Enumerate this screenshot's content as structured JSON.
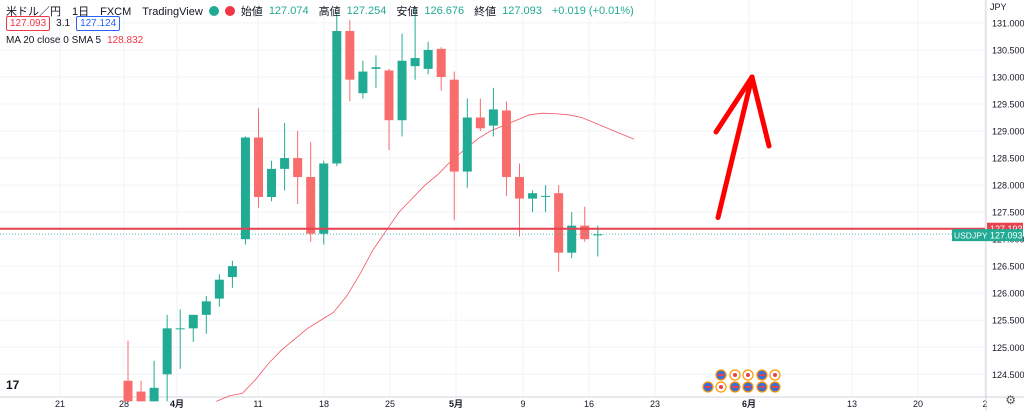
{
  "header": {
    "symbol": "米ドル／円　1日　FXCM　TradingView",
    "open_label": "始値",
    "open": "127.074",
    "high_label": "高値",
    "high": "127.254",
    "low_label": "安値",
    "low": "126.676",
    "close_label": "終値",
    "close": "127.093",
    "change": "+0.019 (+0.01%)",
    "bid": "127.093",
    "spread": "3.1",
    "ask": "127.124",
    "ma_label": "MA 20 close 0 SMA 5",
    "ma_value": "128.832"
  },
  "colors": {
    "up": "#22ab94",
    "down": "#f86c6b",
    "ma": "#f23645",
    "arrow": "#ff0000",
    "hline": "#e5414f"
  },
  "chart_data": {
    "type": "candlestick",
    "currency": "JPY",
    "y_ticks": [
      "131.000",
      "130.500",
      "130.000",
      "129.500",
      "129.000",
      "128.500",
      "128.000",
      "127.500",
      "127.000",
      "126.500",
      "126.000",
      "125.500",
      "125.000",
      "124.500"
    ],
    "ylim": [
      124.08,
      131.35
    ],
    "x_ticks": [
      "21",
      "28",
      "4月",
      "11",
      "18",
      "25",
      "5月",
      "9",
      "16",
      "23",
      "6月",
      "13",
      "20",
      "2"
    ],
    "candles": [
      {
        "o": 124.38,
        "h": 125.12,
        "l": 124.0,
        "c": 124.0
      },
      {
        "o": 124.18,
        "h": 124.38,
        "l": 124.0,
        "c": 124.0
      },
      {
        "o": 124.0,
        "h": 124.75,
        "l": 124.0,
        "c": 124.25
      },
      {
        "o": 124.5,
        "h": 125.6,
        "l": 124.0,
        "c": 125.35
      },
      {
        "o": 125.35,
        "h": 125.7,
        "l": 124.6,
        "c": 125.35
      },
      {
        "o": 125.35,
        "h": 125.55,
        "l": 125.1,
        "c": 125.6
      },
      {
        "o": 125.6,
        "h": 125.95,
        "l": 125.25,
        "c": 125.85
      },
      {
        "o": 125.9,
        "h": 126.35,
        "l": 125.75,
        "c": 126.25
      },
      {
        "o": 126.3,
        "h": 126.6,
        "l": 126.1,
        "c": 126.5
      },
      {
        "o": 127.0,
        "h": 128.9,
        "l": 126.9,
        "c": 128.88
      },
      {
        "o": 128.88,
        "h": 129.42,
        "l": 127.58,
        "c": 127.78
      },
      {
        "o": 127.78,
        "h": 128.45,
        "l": 127.7,
        "c": 128.3
      },
      {
        "o": 128.3,
        "h": 129.15,
        "l": 127.9,
        "c": 128.5
      },
      {
        "o": 128.5,
        "h": 129.0,
        "l": 127.65,
        "c": 128.15
      },
      {
        "o": 128.15,
        "h": 128.8,
        "l": 126.95,
        "c": 127.1
      },
      {
        "o": 127.1,
        "h": 128.45,
        "l": 126.9,
        "c": 128.4
      },
      {
        "o": 128.4,
        "h": 131.2,
        "l": 128.35,
        "c": 130.85
      },
      {
        "o": 130.85,
        "h": 131.05,
        "l": 129.55,
        "c": 129.95
      },
      {
        "o": 129.7,
        "h": 130.3,
        "l": 129.6,
        "c": 130.1
      },
      {
        "o": 130.15,
        "h": 130.4,
        "l": 129.8,
        "c": 130.18
      },
      {
        "o": 130.12,
        "h": 130.15,
        "l": 128.65,
        "c": 129.2
      },
      {
        "o": 129.2,
        "h": 130.8,
        "l": 128.9,
        "c": 130.3
      },
      {
        "o": 130.2,
        "h": 131.3,
        "l": 129.95,
        "c": 130.35
      },
      {
        "o": 130.15,
        "h": 130.65,
        "l": 130.05,
        "c": 130.5
      },
      {
        "o": 130.52,
        "h": 130.55,
        "l": 129.75,
        "c": 130.0
      },
      {
        "o": 129.95,
        "h": 130.1,
        "l": 127.35,
        "c": 128.25
      },
      {
        "o": 128.25,
        "h": 129.6,
        "l": 127.95,
        "c": 129.25
      },
      {
        "o": 129.25,
        "h": 129.6,
        "l": 129.0,
        "c": 129.05
      },
      {
        "o": 129.1,
        "h": 129.8,
        "l": 128.9,
        "c": 129.4
      },
      {
        "o": 129.38,
        "h": 129.55,
        "l": 127.8,
        "c": 128.15
      },
      {
        "o": 128.15,
        "h": 128.4,
        "l": 127.05,
        "c": 127.75
      },
      {
        "o": 127.75,
        "h": 127.9,
        "l": 127.5,
        "c": 127.85
      },
      {
        "o": 127.8,
        "h": 128.0,
        "l": 127.5,
        "c": 127.8
      },
      {
        "o": 127.85,
        "h": 128.0,
        "l": 126.4,
        "c": 126.75
      },
      {
        "o": 126.75,
        "h": 127.5,
        "l": 126.65,
        "c": 127.25
      },
      {
        "o": 127.25,
        "h": 127.6,
        "l": 126.95,
        "c": 127.0
      },
      {
        "o": 127.07,
        "h": 127.25,
        "l": 126.68,
        "c": 127.09
      }
    ],
    "ma_series": [
      124.0,
      124.1,
      124.15,
      124.4,
      124.7,
      124.95,
      125.15,
      125.35,
      125.5,
      125.65,
      125.95,
      126.35,
      126.8,
      127.15,
      127.5,
      127.75,
      128.0,
      128.2,
      128.45,
      128.65,
      128.85,
      129.0,
      129.1,
      129.2,
      129.3,
      129.33,
      129.32,
      129.3,
      129.25,
      129.15,
      129.05,
      128.95,
      128.85
    ],
    "hline_value": 127.193,
    "price_labels": {
      "red": "127.193",
      "green_name": "USDJPY",
      "green": "127.093"
    },
    "arrow": {
      "from": [
        35,
        127.4
      ],
      "to": [
        37.6,
        130.0
      ]
    },
    "events_row1": [
      "us",
      "jp",
      "jp",
      "us",
      "jp"
    ],
    "events_row2": [
      "us",
      "jp",
      "us",
      "us",
      "us",
      "us"
    ]
  }
}
